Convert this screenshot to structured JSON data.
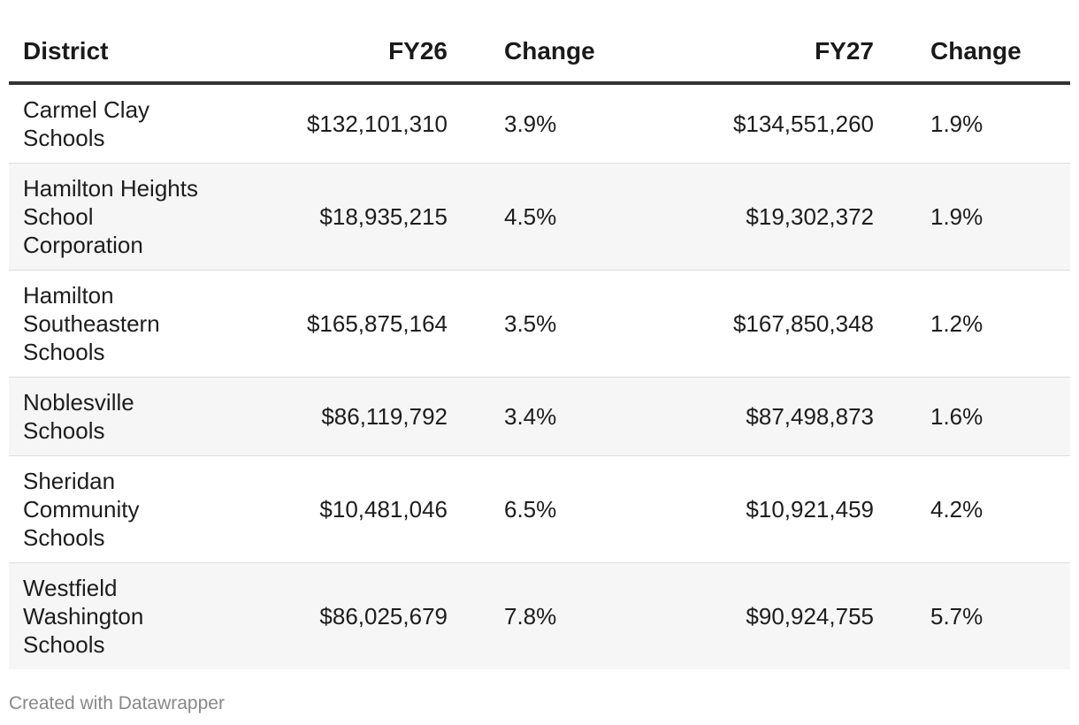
{
  "chart_data": {
    "type": "table",
    "columns": [
      "District",
      "FY26",
      "Change",
      "FY27",
      "Change"
    ],
    "rows": [
      [
        "Carmel Clay Schools",
        "$132,101,310",
        "3.9%",
        "$134,551,260",
        "1.9%"
      ],
      [
        "Hamilton Heights School Corporation",
        "$18,935,215",
        "4.5%",
        "$19,302,372",
        "1.9%"
      ],
      [
        "Hamilton Southeastern Schools",
        "$165,875,164",
        "3.5%",
        "$167,850,348",
        "1.2%"
      ],
      [
        "Noblesville Schools",
        "$86,119,792",
        "3.4%",
        "$87,498,873",
        "1.6%"
      ],
      [
        "Sheridan Community Schools",
        "$10,481,046",
        "6.5%",
        "$10,921,459",
        "4.2%"
      ],
      [
        "Westfield Washington Schools",
        "$86,025,679",
        "7.8%",
        "$90,924,755",
        "5.7%"
      ]
    ]
  },
  "footer": {
    "credit": "Created with Datawrapper"
  }
}
